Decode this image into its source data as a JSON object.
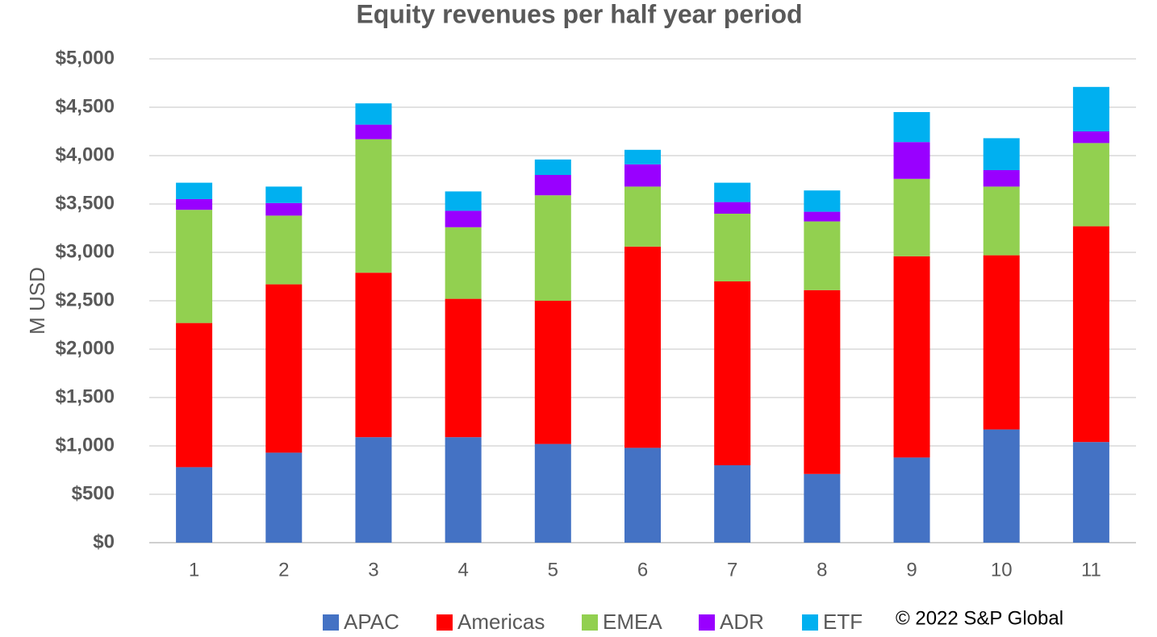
{
  "chart_data": {
    "type": "stacked_bar",
    "title": "Equity revenues per half year period",
    "ylabel": "M USD",
    "copyright": "© 2022 S&P Global",
    "categories": [
      "1",
      "2",
      "3",
      "4",
      "5",
      "6",
      "7",
      "8",
      "9",
      "10",
      "11"
    ],
    "series": [
      {
        "name": "APAC",
        "color": "#4472c4",
        "values": [
          780,
          930,
          1090,
          1090,
          1020,
          980,
          800,
          710,
          880,
          1170,
          1040
        ]
      },
      {
        "name": "Americas",
        "color": "#ff0000",
        "values": [
          1490,
          1740,
          1700,
          1430,
          1480,
          2080,
          1900,
          1900,
          2080,
          1800,
          2230
        ]
      },
      {
        "name": "EMEA",
        "color": "#92d050",
        "values": [
          1170,
          710,
          1380,
          740,
          1090,
          620,
          700,
          710,
          800,
          710,
          860
        ]
      },
      {
        "name": "ADR",
        "color": "#9900ff",
        "values": [
          110,
          130,
          150,
          170,
          210,
          230,
          120,
          100,
          380,
          170,
          120
        ]
      },
      {
        "name": "ETF",
        "color": "#00b0f0",
        "values": [
          170,
          170,
          220,
          200,
          160,
          150,
          200,
          220,
          310,
          330,
          460
        ]
      }
    ],
    "ylim": [
      0,
      5000
    ],
    "yticks": [
      {
        "value": 0,
        "label": "$0"
      },
      {
        "value": 500,
        "label": "$500"
      },
      {
        "value": 1000,
        "label": "$1,000"
      },
      {
        "value": 1500,
        "label": "$1,500"
      },
      {
        "value": 2000,
        "label": "$2,000"
      },
      {
        "value": 2500,
        "label": "$2,500"
      },
      {
        "value": 3000,
        "label": "$3,000"
      },
      {
        "value": 3500,
        "label": "$3,500"
      },
      {
        "value": 4000,
        "label": "$4,000"
      },
      {
        "value": 4500,
        "label": "$4,500"
      },
      {
        "value": 5000,
        "label": "$5,000"
      }
    ],
    "grid": true
  }
}
